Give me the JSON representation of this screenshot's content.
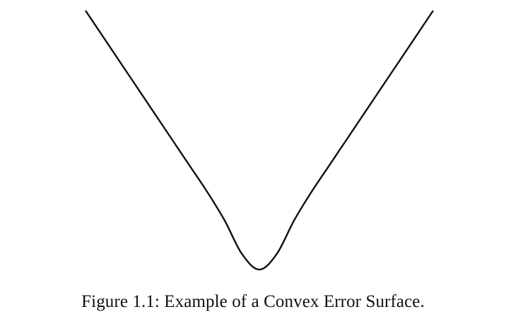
{
  "figure": {
    "caption": "Figure 1.1: Example of a Convex Error Surface."
  },
  "chart_data": {
    "type": "line",
    "title": "",
    "xlabel": "",
    "ylabel": "",
    "axes_visible": false,
    "grid": false,
    "line_color": "#111111",
    "xlim": [
      -2,
      2
    ],
    "ylim": [
      0,
      1
    ],
    "series": [
      {
        "x": [
          -2.0,
          -1.8,
          -1.6,
          -1.4,
          -1.2,
          -1.0,
          -0.8,
          -0.6,
          -0.4,
          -0.2,
          0.0,
          0.2,
          0.4,
          0.6,
          0.8,
          1.0,
          1.2,
          1.4,
          1.6,
          1.8,
          2.0
        ],
        "y": [
          1.0,
          0.9,
          0.8,
          0.7,
          0.6,
          0.5,
          0.4,
          0.3,
          0.19,
          0.06,
          0.0,
          0.06,
          0.19,
          0.3,
          0.4,
          0.5,
          0.6,
          0.7,
          0.8,
          0.9,
          1.0
        ]
      }
    ]
  }
}
